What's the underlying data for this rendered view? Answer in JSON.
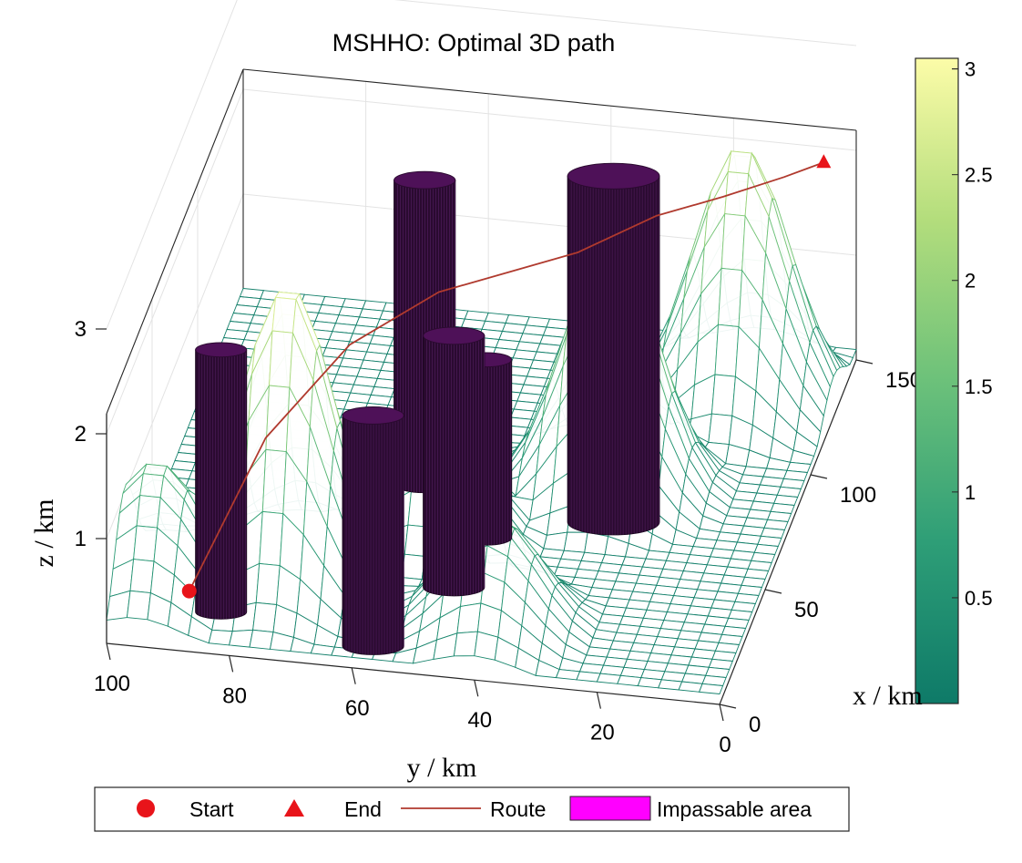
{
  "chart_data": {
    "type": "surface3d",
    "title": "MSHHO: Optimal 3D path",
    "xlabel": "x / km",
    "ylabel": "y / km",
    "zlabel": "z / km",
    "xlim": [
      0,
      150
    ],
    "ylim": [
      0,
      100
    ],
    "zlim": [
      0,
      3
    ],
    "x_ticks": [
      "0",
      "50",
      "100",
      "150"
    ],
    "y_ticks": [
      "0",
      "20",
      "40",
      "60",
      "80",
      "100"
    ],
    "z_ticks": [
      "1",
      "2",
      "3"
    ],
    "colorbar": {
      "ticks": [
        "0.5",
        "1",
        "1.5",
        "2",
        "2.5",
        "3"
      ],
      "range": [
        0,
        3.05
      ],
      "colormap": [
        "#0e7a68",
        "#2e9e77",
        "#6cc17a",
        "#b3dd7c",
        "#fcfca8"
      ]
    },
    "grid": true,
    "legend_position": "bottom",
    "legend": [
      {
        "label": "Start",
        "marker": "circle",
        "color": "#e8141a"
      },
      {
        "label": "End",
        "marker": "triangle",
        "color": "#e8141a"
      },
      {
        "label": "Route",
        "marker": "line",
        "color": "#b03a2e"
      },
      {
        "label": "Impassable area",
        "marker": "patch",
        "color": "#ff00ff"
      }
    ],
    "start_point": {
      "x": 10,
      "y": 88,
      "z": 0.35
    },
    "end_point": {
      "x": 148,
      "y": 5,
      "z": 1.9
    },
    "peaks": [
      {
        "x": 30,
        "y": 75,
        "z": 2.9
      },
      {
        "x": 82,
        "y": 30,
        "z": 2.4
      },
      {
        "x": 125,
        "y": 15,
        "z": 2.5
      },
      {
        "x": 55,
        "y": 55,
        "z": 1.4
      },
      {
        "x": 20,
        "y": 95,
        "z": 1.3
      },
      {
        "x": 20,
        "y": 40,
        "z": 1.1
      }
    ],
    "impassable_areas": [
      {
        "x": 10,
        "y": 58,
        "radius": 6,
        "height": 2.2
      },
      {
        "x": 18,
        "y": 84,
        "radius": 5,
        "height": 2.5
      },
      {
        "x": 38,
        "y": 49,
        "radius": 6,
        "height": 2.4
      },
      {
        "x": 60,
        "y": 47,
        "radius": 5,
        "height": 1.7
      },
      {
        "x": 80,
        "y": 60,
        "radius": 6,
        "height": 2.9
      },
      {
        "x": 72,
        "y": 28,
        "radius": 9,
        "height": 3.3
      }
    ],
    "route": [
      {
        "x": 10,
        "y": 88,
        "z": 0.35
      },
      {
        "x": 40,
        "y": 80,
        "z": 1.2
      },
      {
        "x": 65,
        "y": 70,
        "z": 1.6
      },
      {
        "x": 82,
        "y": 58,
        "z": 1.8
      },
      {
        "x": 100,
        "y": 38,
        "z": 1.9
      },
      {
        "x": 112,
        "y": 27,
        "z": 2.05
      },
      {
        "x": 125,
        "y": 18,
        "z": 2.0
      },
      {
        "x": 138,
        "y": 10,
        "z": 1.95
      },
      {
        "x": 148,
        "y": 5,
        "z": 1.9
      }
    ]
  }
}
